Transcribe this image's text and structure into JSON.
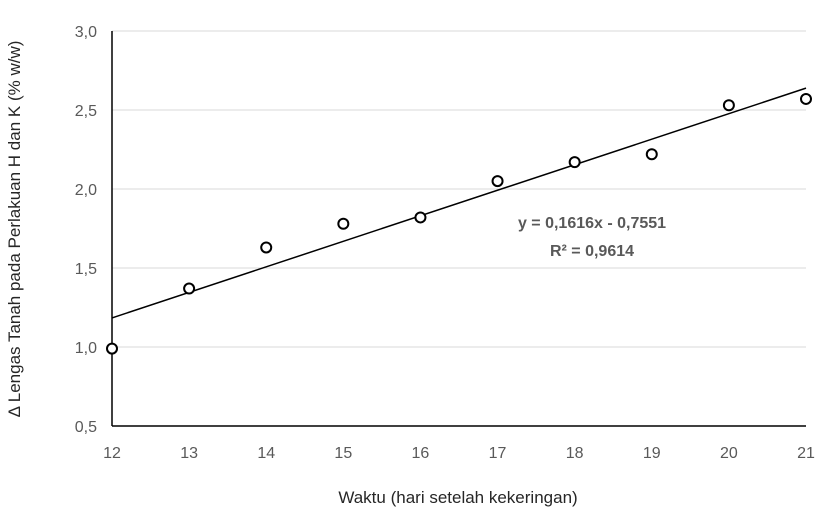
{
  "chart_data": {
    "type": "scatter",
    "xlabel": "Waktu (hari setelah kekeringan)",
    "ylabel": "Δ Lengas Tanah pada Perlakuan H dan K (% w/w)",
    "xlim": [
      12,
      21
    ],
    "ylim": [
      0.5,
      3.0
    ],
    "x_ticks": [
      "12",
      "13",
      "14",
      "15",
      "16",
      "17",
      "18",
      "19",
      "20",
      "21"
    ],
    "y_ticks": [
      "0,5",
      "1,0",
      "1,5",
      "2,0",
      "2,5",
      "3,0"
    ],
    "grid": "horizontal",
    "series": [
      {
        "x": [
          12,
          13,
          14,
          15,
          16,
          17,
          18,
          19,
          20,
          21
        ],
        "y": [
          0.99,
          1.37,
          1.63,
          1.78,
          1.82,
          2.05,
          2.17,
          2.22,
          2.53,
          2.57
        ]
      }
    ],
    "trendline": {
      "type": "linear",
      "slope": 0.1616,
      "intercept": -0.7551,
      "equation": "y = 0,1616x - 0,7551",
      "r_squared": "R² = 0,9614"
    },
    "colors": {
      "axis": "#000000",
      "grid": "#d9d9d9",
      "marker": "#000000",
      "text": "#595959"
    }
  }
}
